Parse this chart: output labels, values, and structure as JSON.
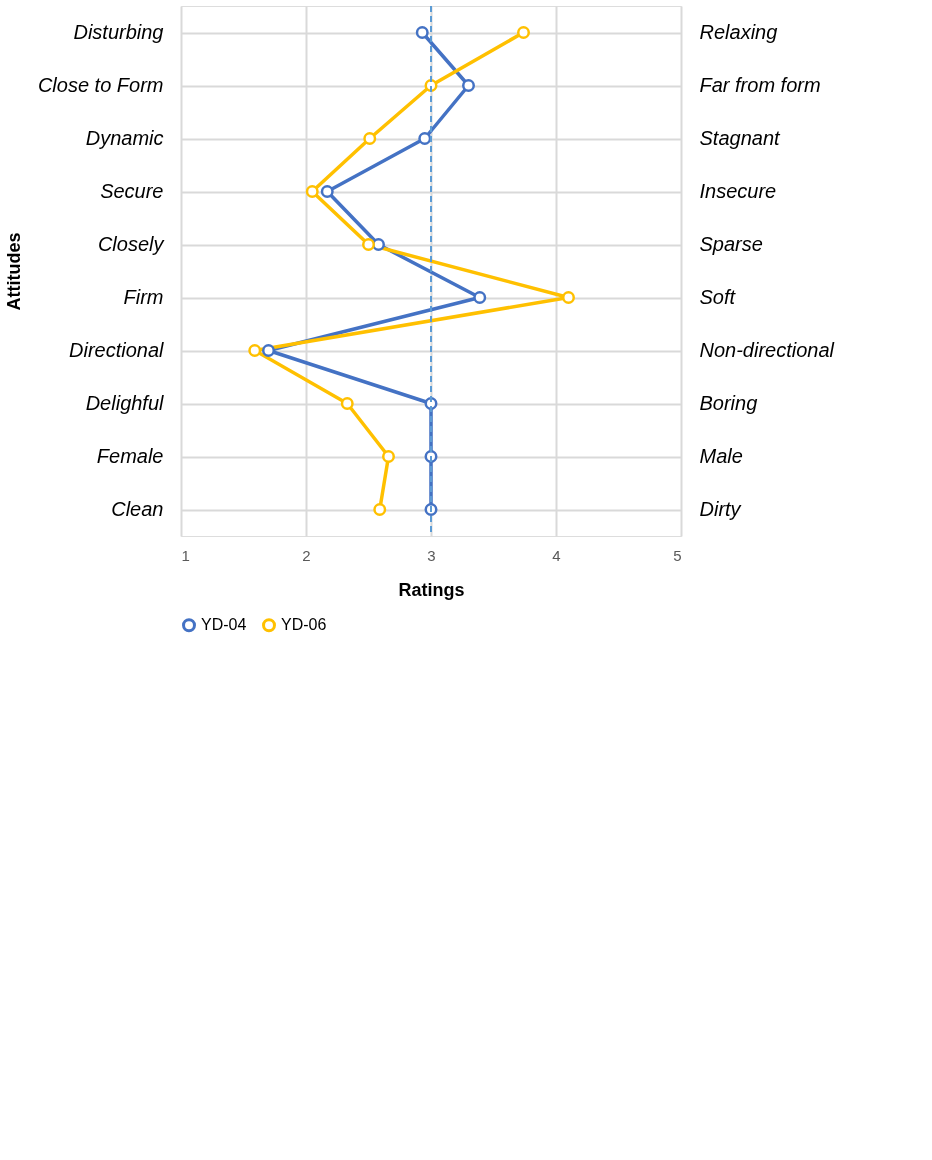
{
  "chart_data": {
    "type": "line",
    "orientation": "horizontal",
    "xlabel": "Ratings",
    "ylabel": "Attitudes",
    "categories": [
      "Disturbing",
      "Close to Form",
      "Dynamic",
      "Secure",
      "Closely",
      "Firm",
      "Directional",
      "Delighful",
      "Female",
      "Clean"
    ],
    "y2_categories": [
      "Relaxing",
      "Far from form",
      "Stagnant",
      "Insecure",
      "Sparse",
      "Soft",
      "Non-directional",
      "Boring",
      "Male",
      "Dirty"
    ],
    "series": [
      {
        "name": "YD-04",
        "color": "#4472c4",
        "values": [
          2.93,
          3.3,
          2.95,
          2.17,
          2.58,
          3.39,
          1.7,
          3.0,
          3.0,
          3.0
        ]
      },
      {
        "name": "YD-06",
        "color": "#ffc000",
        "values": [
          3.74,
          3.0,
          2.51,
          2.05,
          2.5,
          4.1,
          1.59,
          2.33,
          2.66,
          2.59
        ]
      }
    ],
    "xlim": [
      1,
      5
    ],
    "xticks": [
      1,
      2,
      3,
      4,
      5
    ],
    "ref_lines": [
      {
        "axis": "x",
        "value": 3,
        "color": "#5b9bd5",
        "line_style": "dashed"
      }
    ],
    "grid": true,
    "legend": "bottom",
    "marker": "circle",
    "line_style": "solid"
  }
}
